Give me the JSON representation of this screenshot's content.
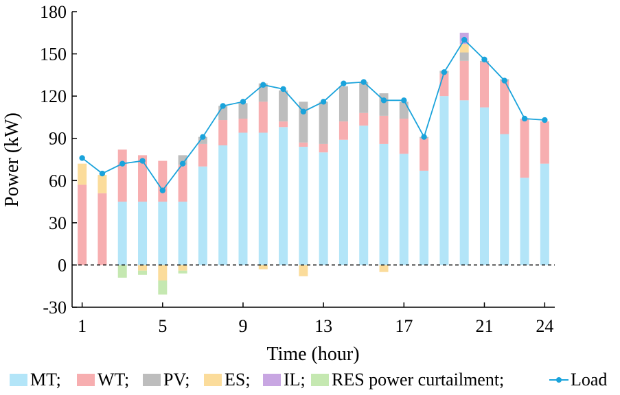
{
  "chart_data": {
    "type": "bar",
    "stacked": true,
    "xlabel": "Time (hour)",
    "ylabel": "Power (kW)",
    "ylim": [
      -30,
      180
    ],
    "xlim": [
      0.5,
      24.5
    ],
    "yticks": [
      -30,
      0,
      30,
      60,
      90,
      120,
      150,
      180
    ],
    "xticks": [
      1,
      5,
      9,
      13,
      17,
      21,
      24
    ],
    "legend_position": "bottom",
    "zero_line": "dashed",
    "x": [
      1,
      2,
      3,
      4,
      5,
      6,
      7,
      8,
      9,
      10,
      11,
      12,
      13,
      14,
      15,
      16,
      17,
      18,
      19,
      20,
      21,
      22,
      23,
      24
    ],
    "series": [
      {
        "name": "MT",
        "type": "bar",
        "color": "#b3e5f8",
        "values": [
          0,
          0,
          45,
          45,
          45,
          45,
          70,
          85,
          94,
          94,
          98,
          84,
          80,
          89,
          99,
          86,
          79,
          67,
          120,
          117,
          112,
          93,
          62,
          72
        ]
      },
      {
        "name": "WT",
        "type": "bar",
        "color": "#f7aeb0",
        "values": [
          57,
          51,
          37,
          33,
          29,
          26,
          16,
          18,
          10,
          22,
          4,
          3,
          6,
          13,
          9,
          20,
          25,
          23,
          16,
          28,
          32,
          38,
          42,
          30
        ]
      },
      {
        "name": "PV",
        "type": "bar",
        "color": "#bdbdbd",
        "values": [
          0,
          0,
          0,
          0,
          0,
          7,
          5,
          10,
          11,
          13,
          22,
          29,
          30,
          25,
          22,
          16,
          12,
          1,
          2,
          6,
          1,
          1,
          0,
          0
        ]
      },
      {
        "name": "ES",
        "type": "bar",
        "color": "#fbdc9b",
        "values": [
          15,
          13,
          0,
          -4,
          -11,
          -4,
          0,
          0,
          0,
          -3,
          0,
          -8,
          0,
          0,
          0,
          -5,
          0,
          0,
          0,
          6,
          0,
          0,
          0,
          0
        ]
      },
      {
        "name": "IL",
        "type": "bar",
        "color": "#c8a6e2",
        "values": [
          0,
          0,
          0,
          0,
          0,
          0,
          0,
          0,
          0,
          0,
          0,
          0,
          0,
          0,
          0,
          0,
          0,
          0,
          0,
          8,
          0,
          0,
          0,
          0
        ]
      },
      {
        "name": "RES power curtailment",
        "type": "bar",
        "color": "#c5e8b1",
        "values": [
          0,
          0,
          -9,
          -3,
          -10,
          -2,
          0,
          0,
          0,
          0,
          0,
          0,
          0,
          0,
          0,
          0,
          0,
          0,
          0,
          0,
          0,
          0,
          0,
          0
        ]
      },
      {
        "name": "Load",
        "type": "line",
        "color": "#1aa3db",
        "values": [
          76,
          65,
          72,
          74,
          53,
          72,
          91,
          113,
          116,
          128,
          125,
          109,
          116,
          129,
          130,
          117,
          117,
          91,
          137,
          160,
          146,
          131,
          104,
          103
        ]
      }
    ],
    "legend_labels": [
      "MT;",
      "WT;",
      "PV;",
      "ES;",
      "IL;",
      "RES power curtailment;",
      "Load"
    ]
  }
}
